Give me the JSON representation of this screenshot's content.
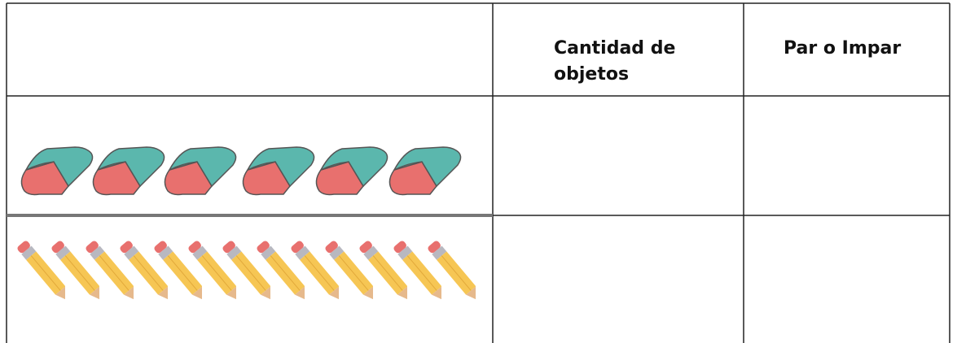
{
  "table": {
    "header": [
      "Cantidad de objetos",
      "Par o Impar"
    ]
  }
}
